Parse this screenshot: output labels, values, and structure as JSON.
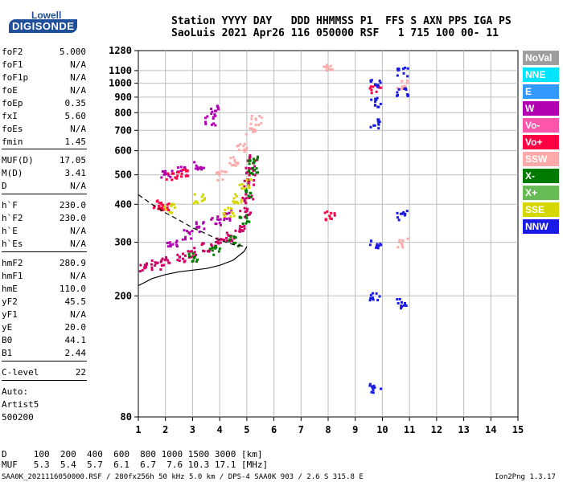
{
  "logo": {
    "top": "Lowell",
    "main": "DIGISONDE"
  },
  "header": {
    "line1": "Station YYYY DAY   DDD HHMMSS P1  FFS S AXN PPS IGA PS",
    "line2": "SaoLuis 2021 Apr26 116 050000 RSF   1 715 100 00- 11"
  },
  "params": [
    {
      "label": "foF2",
      "value": "5.000"
    },
    {
      "label": "foF1",
      "value": "N/A"
    },
    {
      "label": "foF1p",
      "value": "N/A"
    },
    {
      "label": "foE",
      "value": "N/A"
    },
    {
      "label": "foEp",
      "value": "0.35"
    },
    {
      "label": "fxI",
      "value": "5.60"
    },
    {
      "label": "foEs",
      "value": "N/A"
    },
    {
      "label": "fmin",
      "value": "1.45"
    },
    {
      "label": "MUF(D)",
      "value": "17.05"
    },
    {
      "label": "M(D)",
      "value": "3.41"
    },
    {
      "label": "D",
      "value": "N/A"
    },
    {
      "label": "h`F",
      "value": "230.0"
    },
    {
      "label": "h`F2",
      "value": "230.0"
    },
    {
      "label": "h`E",
      "value": "N/A"
    },
    {
      "label": "h`Es",
      "value": "N/A"
    },
    {
      "label": "hmF2",
      "value": "280.9"
    },
    {
      "label": "hmF1",
      "value": "N/A"
    },
    {
      "label": "hmE",
      "value": "110.0"
    },
    {
      "label": "yF2",
      "value": "45.5"
    },
    {
      "label": "yF1",
      "value": "N/A"
    },
    {
      "label": "yE",
      "value": "20.0"
    },
    {
      "label": "B0",
      "value": "44.1"
    },
    {
      "label": "B1",
      "value": "2.44"
    },
    {
      "label": "C-level",
      "value": "22"
    }
  ],
  "auto": [
    "Auto:",
    "Artist5",
    "500200"
  ],
  "legend": [
    {
      "label": "NoVal",
      "color": "#9e9e9e"
    },
    {
      "label": "NNE",
      "color": "#00e5ff"
    },
    {
      "label": "E",
      "color": "#3399ff"
    },
    {
      "label": "W",
      "color": "#b000b0"
    },
    {
      "label": "Vo-",
      "color": "#ff55aa"
    },
    {
      "label": "Vo+",
      "color": "#ff0044"
    },
    {
      "label": "SSW",
      "color": "#ffaaaa"
    },
    {
      "label": "X-",
      "color": "#007a00"
    },
    {
      "label": "X+",
      "color": "#66bb55"
    },
    {
      "label": "SSE",
      "color": "#d6d600"
    },
    {
      "label": "NNW",
      "color": "#1a1ae6"
    }
  ],
  "bottom": {
    "d_row": "D     100  200  400  600  800 1000 1500 3000 [km]",
    "muf_row": "MUF   5.3  5.4  5.7  6.1  6.7  7.6 10.3 17.1 [MHz]"
  },
  "footer": {
    "left": "SAA0K_2021116050000.RSF / 280fx256h 50 kHz 5.0 km / DPS-4 SAA0K 903 / 2.6 S 315.8 E",
    "right": "Ion2Png 1.3.17"
  },
  "chart_data": {
    "type": "scatter",
    "title": "",
    "xlabel": "",
    "ylabel": "",
    "xlim": [
      1,
      15
    ],
    "ylim": [
      80,
      1280
    ],
    "y_scale": "log",
    "grid": true,
    "x_ticks": [
      1,
      2,
      3,
      4,
      5,
      6,
      7,
      8,
      9,
      10,
      11,
      12,
      13,
      14,
      15
    ],
    "y_ticks": [
      80,
      200,
      300,
      400,
      500,
      600,
      700,
      800,
      900,
      1000,
      1100,
      1280
    ],
    "h_profile_curve": {
      "series": "profile",
      "points": [
        [
          1.0,
          216
        ],
        [
          1.5,
          228
        ],
        [
          2.0,
          235
        ],
        [
          2.5,
          240
        ],
        [
          3.0,
          243
        ],
        [
          3.5,
          246
        ],
        [
          4.0,
          252
        ],
        [
          4.5,
          262
        ],
        [
          4.9,
          280
        ],
        [
          5.0,
          290
        ]
      ]
    },
    "o_trace_curve": {
      "series": "dashed",
      "points": [
        [
          1.0,
          430
        ],
        [
          1.5,
          400
        ],
        [
          2.0,
          375
        ],
        [
          2.5,
          355
        ],
        [
          3.0,
          335
        ],
        [
          3.5,
          320
        ],
        [
          4.0,
          305
        ],
        [
          4.5,
          295
        ],
        [
          5.0,
          290
        ]
      ]
    },
    "echo_clusters": [
      {
        "name": "F2 o-trace",
        "color": "#cc0066",
        "points": [
          [
            1.2,
            250
          ],
          [
            1.6,
            255
          ],
          [
            2.0,
            262
          ],
          [
            2.5,
            270
          ],
          [
            3.0,
            280
          ],
          [
            3.5,
            290
          ],
          [
            4.0,
            300
          ],
          [
            4.4,
            315
          ],
          [
            4.7,
            340
          ],
          [
            4.9,
            380
          ],
          [
            5.0,
            420
          ],
          [
            5.05,
            470
          ],
          [
            5.1,
            520
          ],
          [
            5.15,
            570
          ]
        ]
      },
      {
        "name": "F2 x-trace",
        "color": "#007a00",
        "points": [
          [
            3.0,
            270
          ],
          [
            3.8,
            285
          ],
          [
            4.5,
            305
          ],
          [
            4.9,
            360
          ],
          [
            5.1,
            440
          ],
          [
            5.2,
            520
          ],
          [
            5.25,
            560
          ]
        ]
      },
      {
        "name": "W echoes",
        "color": "#b000b0",
        "points": [
          [
            2.2,
            300
          ],
          [
            2.8,
            320
          ],
          [
            3.3,
            340
          ],
          [
            3.8,
            355
          ],
          [
            4.2,
            370
          ],
          [
            2.0,
            505
          ],
          [
            2.6,
            520
          ],
          [
            3.2,
            540
          ],
          [
            3.6,
            760
          ],
          [
            3.8,
            820
          ]
        ]
      },
      {
        "name": "SSW echoes",
        "color": "#ffaaaa",
        "points": [
          [
            4.0,
            500
          ],
          [
            4.5,
            560
          ],
          [
            4.8,
            620
          ],
          [
            5.1,
            700
          ],
          [
            5.3,
            760
          ],
          [
            8.0,
            1120
          ],
          [
            10.7,
            1000
          ],
          [
            10.7,
            300
          ]
        ]
      },
      {
        "name": "SSE echoes",
        "color": "#d6d600",
        "points": [
          [
            4.3,
            380
          ],
          [
            4.6,
            420
          ],
          [
            4.9,
            470
          ],
          [
            2.1,
            390
          ],
          [
            3.2,
            420
          ]
        ]
      },
      {
        "name": "Vo+ echoes",
        "color": "#ff0044",
        "points": [
          [
            1.7,
            400
          ],
          [
            1.9,
            395
          ],
          [
            2.2,
            500
          ],
          [
            2.6,
            510
          ],
          [
            9.7,
            960
          ],
          [
            8.0,
            370
          ]
        ]
      },
      {
        "name": "NNW echoes",
        "color": "#1a1ae6",
        "points": [
          [
            9.7,
            1000
          ],
          [
            9.7,
            870
          ],
          [
            9.7,
            740
          ],
          [
            9.7,
            300
          ],
          [
            9.7,
            200
          ],
          [
            9.7,
            100
          ],
          [
            10.7,
            1100
          ],
          [
            10.7,
            940
          ],
          [
            10.7,
            370
          ],
          [
            10.7,
            190
          ]
        ]
      }
    ]
  }
}
